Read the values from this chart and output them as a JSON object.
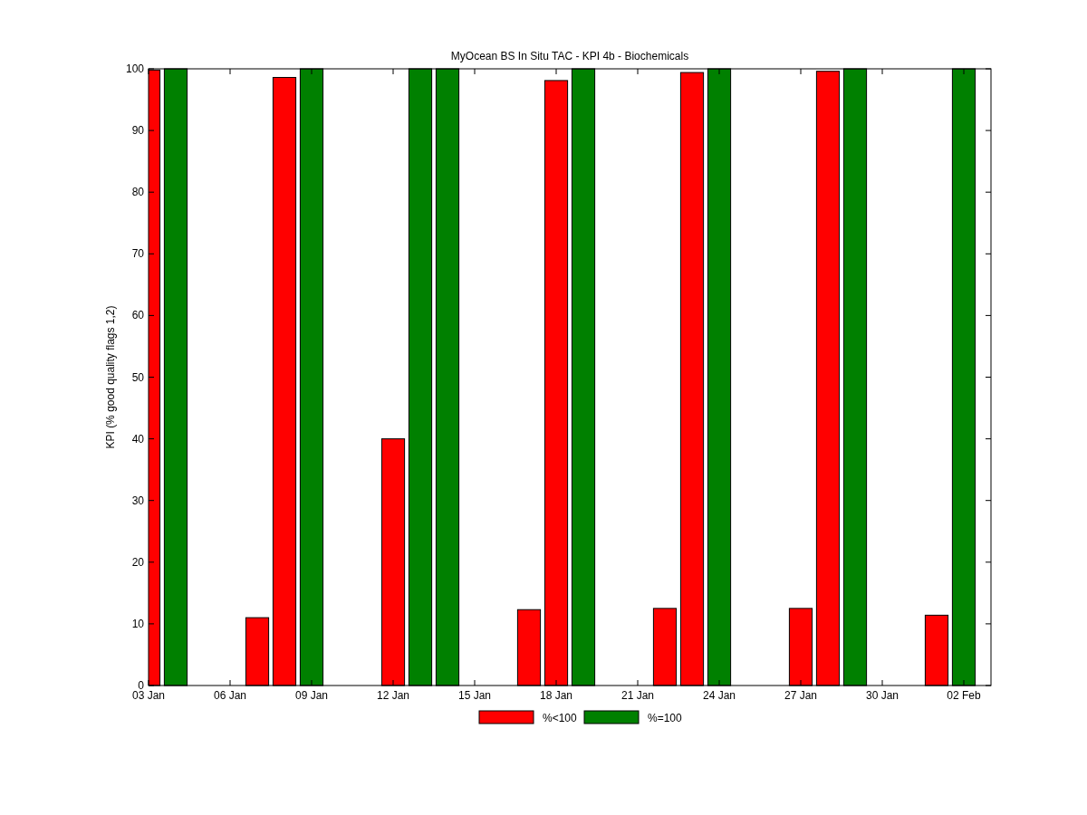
{
  "chart_data": {
    "type": "bar",
    "title": "MyOcean  BS In Situ TAC - KPI 4b - Biochemicals",
    "ylabel": "KPI (% good quality flags 1,2)",
    "series": [
      {
        "name": "%<100",
        "color": "#ff0000",
        "x": [
          "--01-03",
          "--01-07",
          "--01-08",
          "--01-12",
          "--01-17",
          "--01-18",
          "--01-22",
          "--01-23",
          "--01-27",
          "--01-28",
          "--02-01"
        ],
        "values": [
          99.8,
          11,
          98.6,
          40,
          12.3,
          98.1,
          12.5,
          99.4,
          12.5,
          99.6,
          11.4
        ]
      },
      {
        "name": "%=100",
        "color": "#008000",
        "x": [
          "--01-04",
          "--01-09",
          "--01-13",
          "--01-14",
          "--01-19",
          "--01-24",
          "--01-29",
          "--02-02"
        ],
        "values": [
          100,
          100,
          100,
          100,
          100,
          100,
          100,
          100
        ]
      }
    ],
    "xlim": [
      "--01-03",
      "--02-03"
    ],
    "xticks": [
      {
        "value": "--01-03",
        "label": "03 Jan"
      },
      {
        "value": "--01-06",
        "label": "06 Jan"
      },
      {
        "value": "--01-09",
        "label": "09 Jan"
      },
      {
        "value": "--01-12",
        "label": "12 Jan"
      },
      {
        "value": "--01-15",
        "label": "15 Jan"
      },
      {
        "value": "--01-18",
        "label": "18 Jan"
      },
      {
        "value": "--01-21",
        "label": "21 Jan"
      },
      {
        "value": "--01-24",
        "label": "24 Jan"
      },
      {
        "value": "--01-27",
        "label": "27 Jan"
      },
      {
        "value": "--01-30",
        "label": "30 Jan"
      },
      {
        "value": "--02-02",
        "label": "02 Feb"
      }
    ],
    "ylim": [
      0,
      100
    ],
    "yticks": [
      0,
      10,
      20,
      30,
      40,
      50,
      60,
      70,
      80,
      90,
      100
    ],
    "legend": "bottom",
    "grid": false
  }
}
